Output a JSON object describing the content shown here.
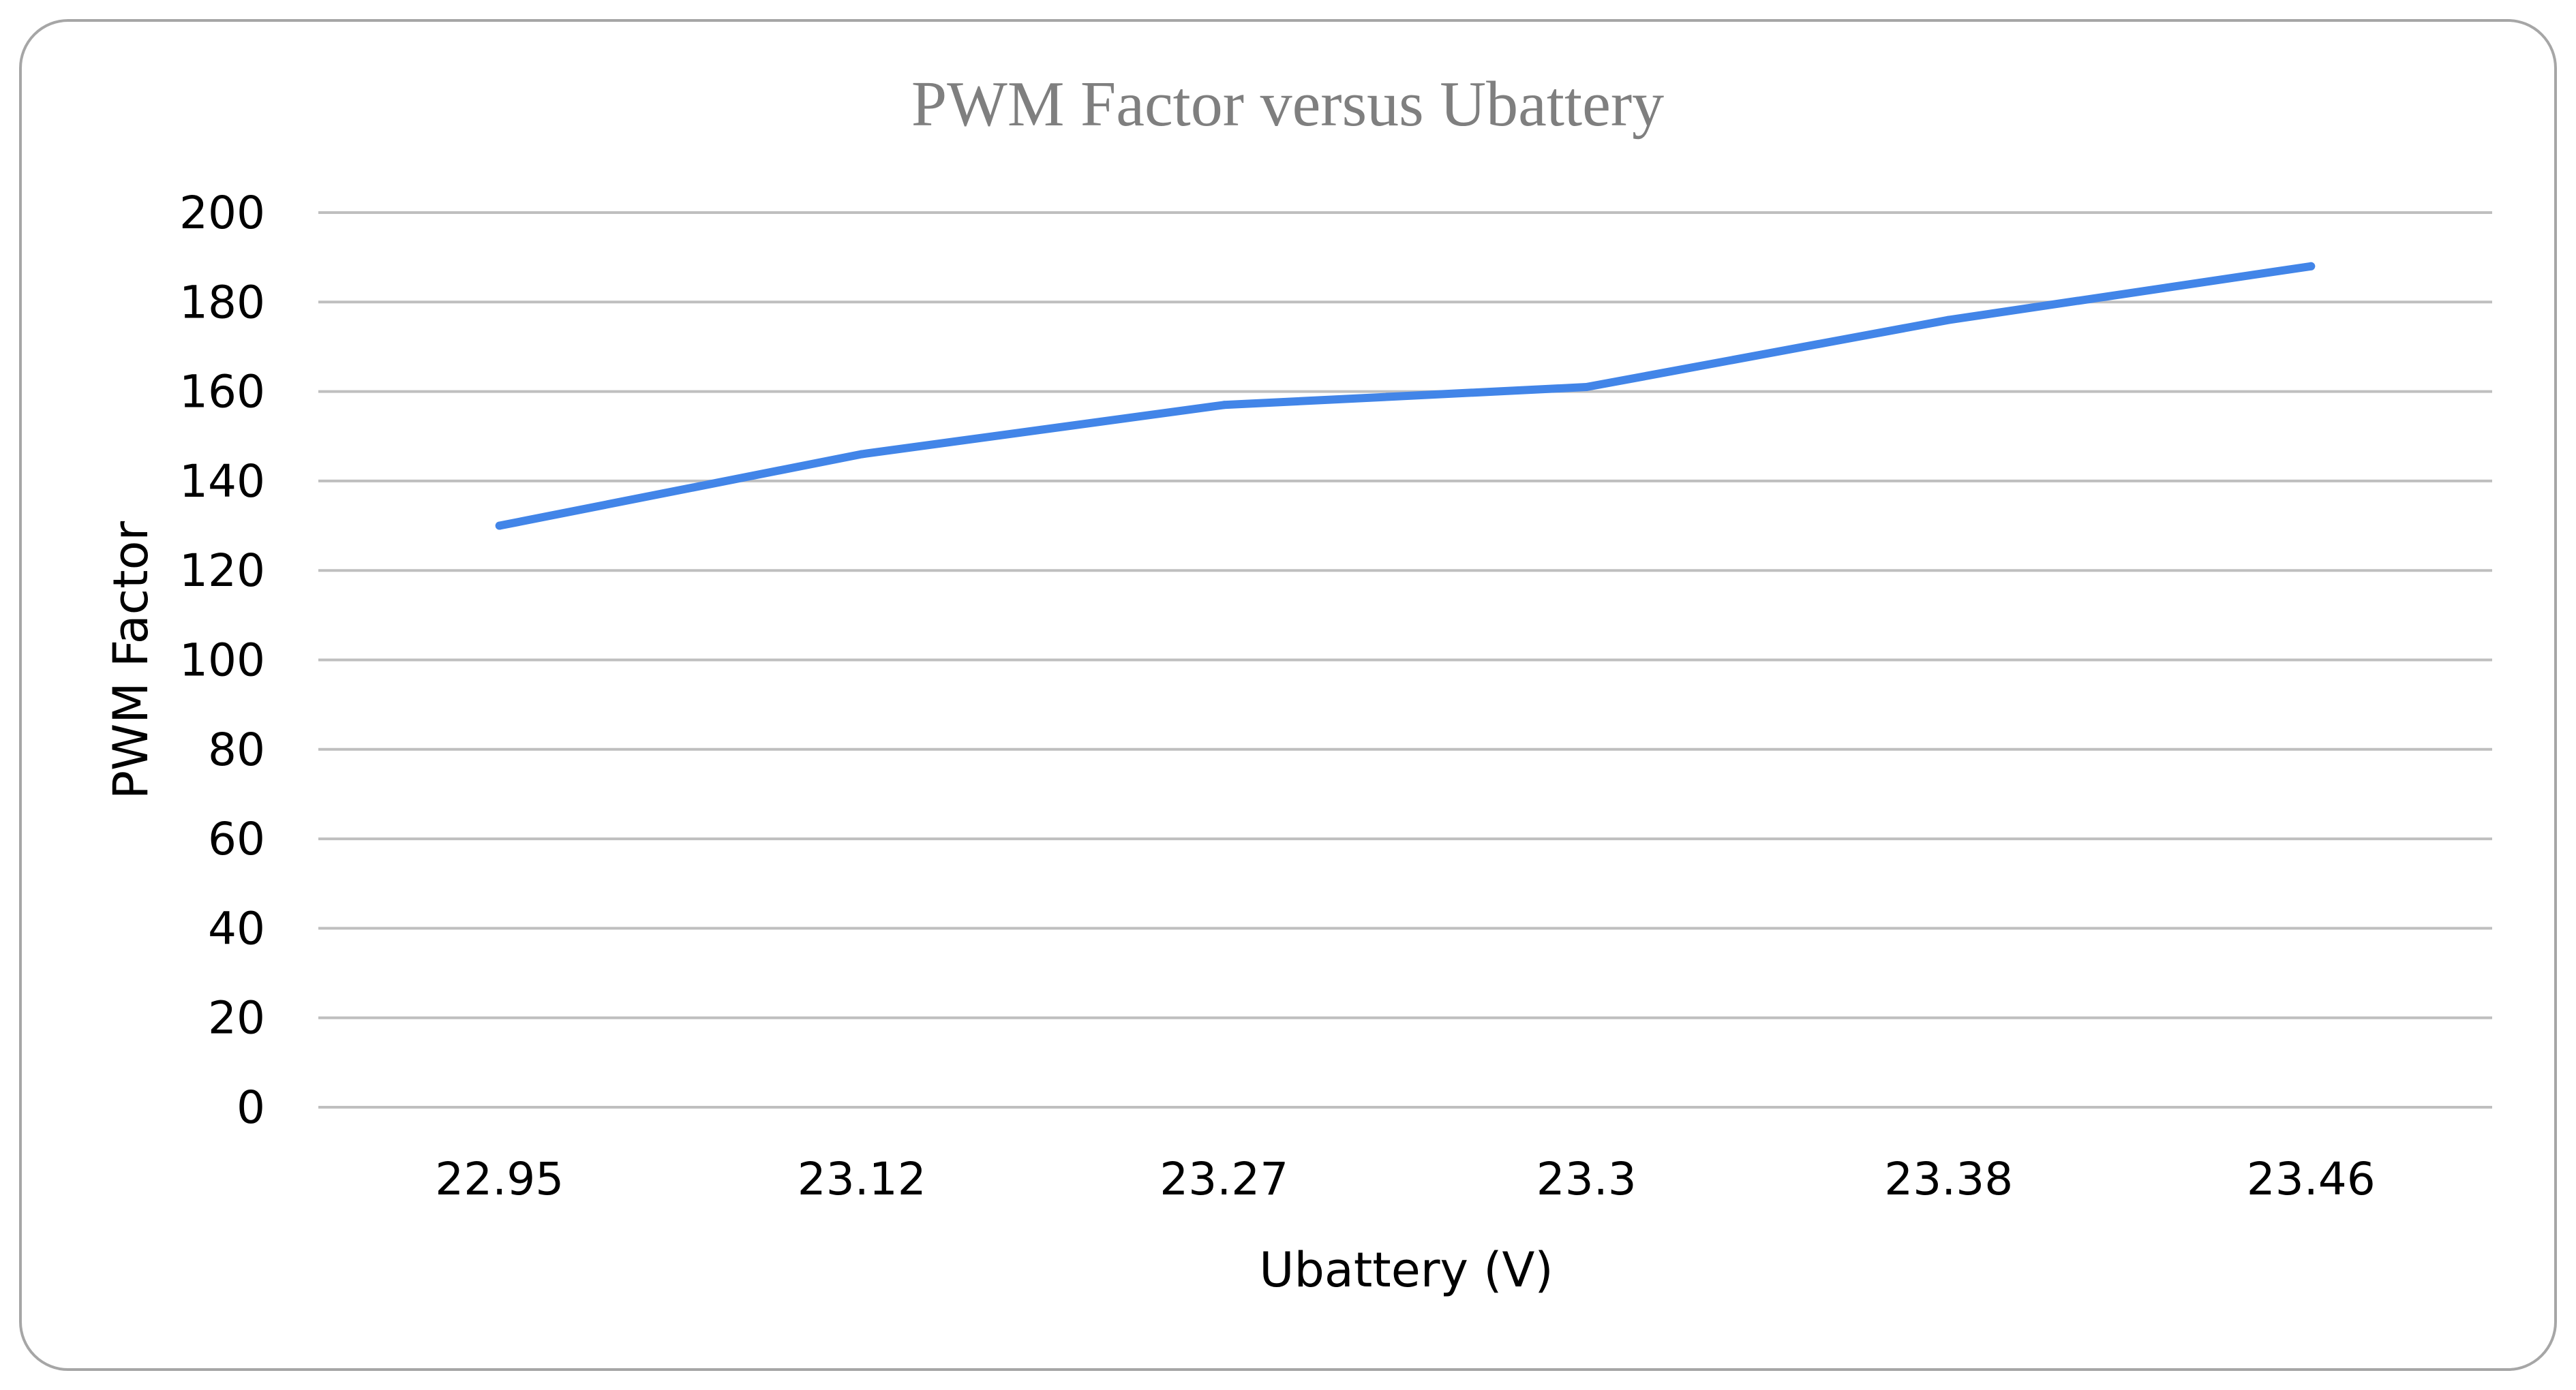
{
  "chart_data": {
    "type": "line",
    "title": "PWM Factor versus Ubattery",
    "xlabel": "Ubattery (V)",
    "ylabel": "PWM Factor",
    "categories": [
      "22.95",
      "23.12",
      "23.27",
      "23.3",
      "23.38",
      "23.46"
    ],
    "series": [
      {
        "values": [
          130,
          146,
          157,
          161,
          176,
          188
        ],
        "color": "#4285e8"
      }
    ],
    "ylim": [
      0,
      200
    ],
    "yticks": [
      0,
      20,
      40,
      60,
      80,
      100,
      120,
      140,
      160,
      180,
      200
    ],
    "grid": true,
    "legend": "none",
    "colors": {
      "gridline": "#bfbfbf",
      "frame_border": "#a6a6a6",
      "title": "#7f7f7f"
    }
  }
}
